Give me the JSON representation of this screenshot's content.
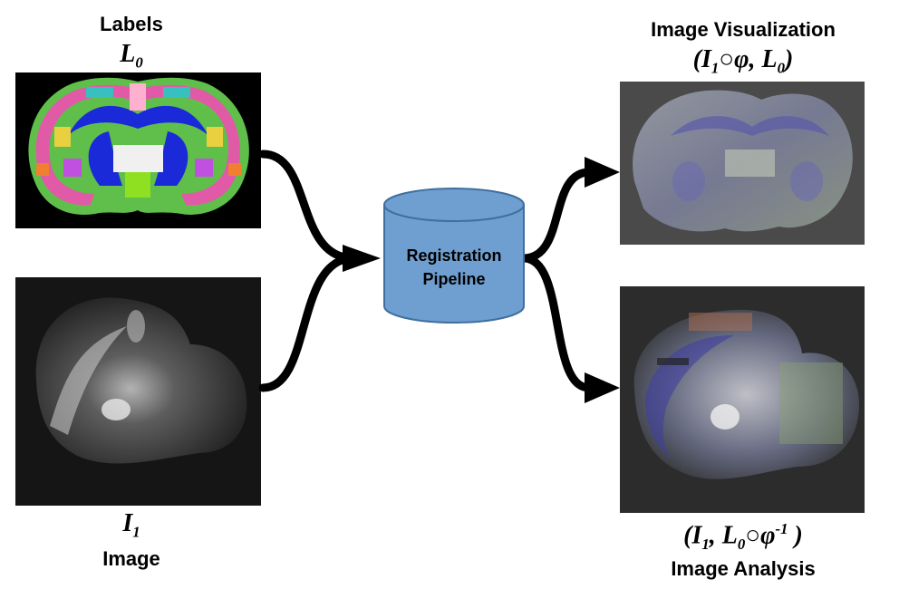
{
  "left_top": {
    "title": "Labels",
    "symbol_main": "L",
    "symbol_sub": "0"
  },
  "left_bottom": {
    "symbol_main": "I",
    "symbol_sub": "1",
    "title": "Image"
  },
  "center": {
    "line1": "Registration",
    "line2": "Pipeline"
  },
  "right_top": {
    "title": "Image Visualization",
    "f_open": "(I",
    "f_sub1": "1",
    "f_rest": "○φ, L",
    "f_sub2": "0",
    "f_close": ")"
  },
  "right_bottom": {
    "f_open": "(I",
    "f_sub1": "1",
    "f_mid": ", L",
    "f_sub2": "0",
    "f_phi": "○φ",
    "f_sup": "-1",
    "f_close": " )",
    "title": "Image Analysis"
  },
  "colors": {
    "cylinder_fill": "#6f9fd0",
    "cylinder_stroke": "#3f6f9f",
    "arrow": "#000000",
    "panel_dark": "#000000",
    "panel_gray": "#444444"
  }
}
